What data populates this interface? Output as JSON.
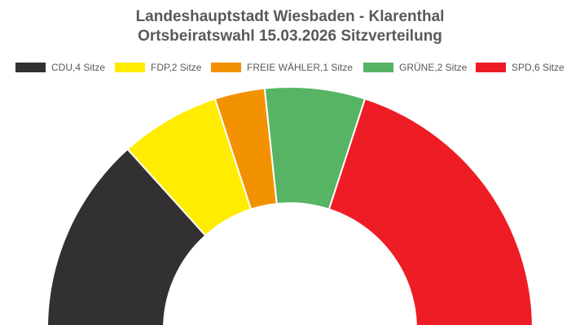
{
  "chart_data": {
    "type": "pie",
    "variant": "half-donut (parliament seat distribution)",
    "title": "Landeshauptstadt Wiesbaden - Klarenthal",
    "subtitle": "Ortsbeiratswahl 15.03.2026 Sitzverteilung",
    "legend_position": "top",
    "unit": "Sitze",
    "total": 15,
    "series": [
      {
        "name": "CDU",
        "value": 4,
        "label": "CDU,4 Sitze",
        "color": "#323031"
      },
      {
        "name": "FDP",
        "value": 2,
        "label": "FDP,2 Sitze",
        "color": "#ffec00"
      },
      {
        "name": "FREIE WÄHLER",
        "value": 1,
        "label": "FREIE WÄHLER,1 Sitze",
        "color": "#f39200"
      },
      {
        "name": "GRÜNE",
        "value": 2,
        "label": "GRÜNE,2 Sitze",
        "color": "#56b464"
      },
      {
        "name": "SPD",
        "value": 6,
        "label": "SPD,6 Sitze",
        "color": "#ee1c25"
      }
    ]
  }
}
